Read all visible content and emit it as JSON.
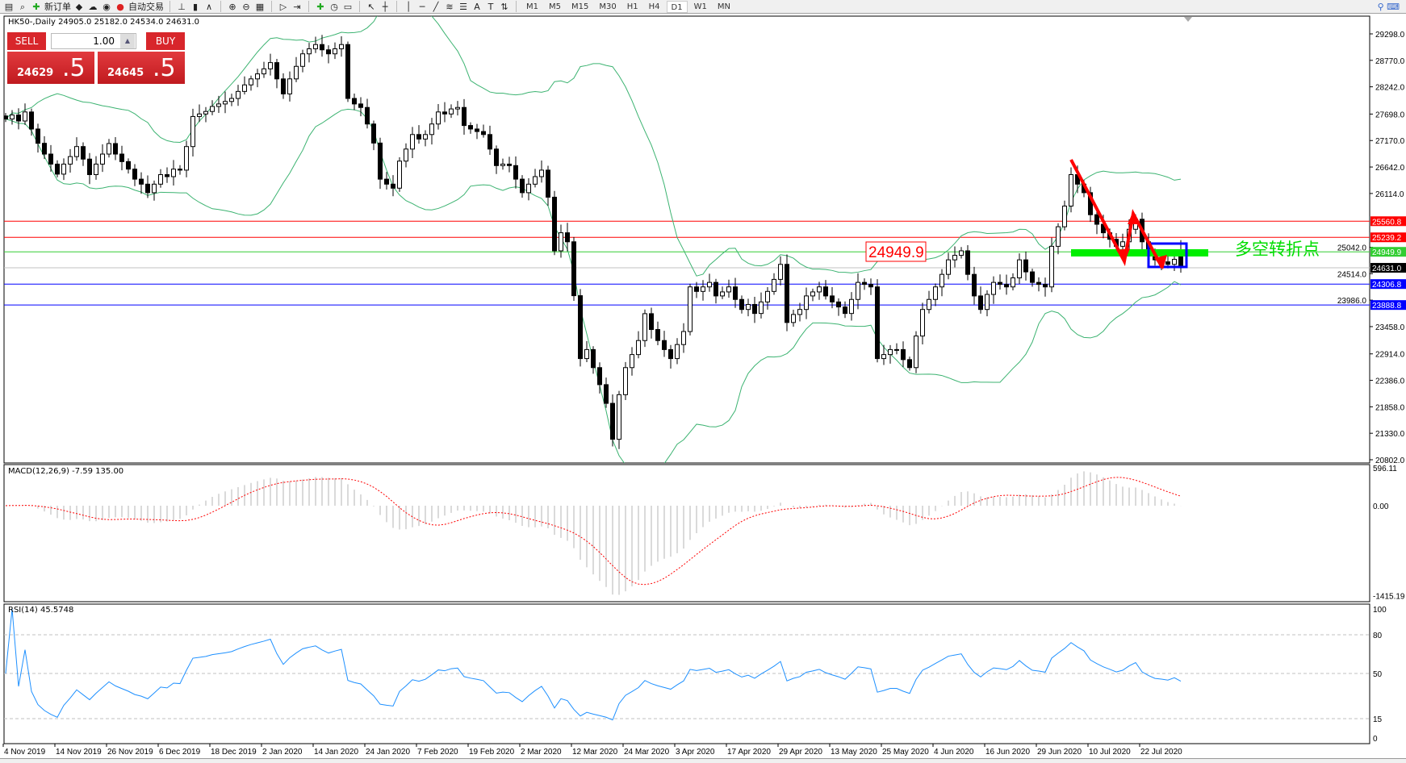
{
  "toolbar": {
    "icons": [
      "chart-list-icon",
      "zoom-window-icon",
      "new-order-icon",
      "gold-icon",
      "cloud-icon",
      "signal-icon",
      "auto-trading-icon",
      "bar-chart-icon",
      "candle-chart-icon",
      "line-chart-icon",
      "zoom-in-icon",
      "zoom-out-icon",
      "tile-icon",
      "autoscroll-icon",
      "chart-shift-icon",
      "indicators-icon",
      "clock-icon",
      "template-icon",
      "cursor-icon",
      "crosshair-icon",
      "vertical-line-icon",
      "horizontal-line-icon",
      "trendline-icon",
      "fibonacci-icon",
      "fibo-levels-icon",
      "text-icon",
      "label-icon",
      "arrows-icon"
    ],
    "new_order": "新订单",
    "auto_trading": "自动交易",
    "timeframes": [
      "M1",
      "M5",
      "M15",
      "M30",
      "H1",
      "H4",
      "D1",
      "W1",
      "MN"
    ],
    "active_timeframe": "D1"
  },
  "chart": {
    "title": "HK50-,Daily  24905.0 25182.0 24534.0 24631.0",
    "last_bar": {
      "open": 24905.0,
      "high": 25182.0,
      "low": 24534.0,
      "close": 24631.0
    },
    "one_click": {
      "sell": "SELL",
      "buy": "BUY",
      "lot": "1.00",
      "bid_main": "24629",
      "bid_big": ".5",
      "ask_main": "24645",
      "ask_big": ".5"
    },
    "price_ticks": [
      "29298.0",
      "28770.0",
      "28242.0",
      "27698.0",
      "27170.0",
      "26642.0",
      "26114.0",
      "25042.0",
      "24514.0",
      "23986.0",
      "23458.0",
      "22914.0",
      "22386.0",
      "21858.0",
      "21330.0",
      "20802.0"
    ],
    "levels": [
      {
        "price": "25560.8",
        "color": "#ff0000"
      },
      {
        "price": "25239.2",
        "color": "#ff0000"
      },
      {
        "price": "24949.9",
        "color": "#32cd32"
      },
      {
        "price": "24631.0",
        "color": "#000000",
        "line": "#c0c0c0"
      },
      {
        "price": "24306.8",
        "color": "#0000ff"
      },
      {
        "price": "23888.8",
        "color": "#0000ff"
      }
    ],
    "annotation_price": "24949.9",
    "annotation_text": "多空转折点",
    "dates": [
      "4 Nov 2019",
      "14 Nov 2019",
      "26 Nov 2019",
      "6 Dec 2019",
      "18 Dec 2019",
      "2 Jan 2020",
      "14 Jan 2020",
      "24 Jan 2020",
      "7 Feb 2020",
      "19 Feb 2020",
      "2 Mar 2020",
      "12 Mar 2020",
      "24 Mar 2020",
      "3 Apr 2020",
      "17 Apr 2020",
      "29 Apr 2020",
      "13 May 2020",
      "25 May 2020",
      "4 Jun 2020",
      "16 Jun 2020",
      "29 Jun 2020",
      "10 Jul 2020",
      "22 Jul 2020"
    ],
    "closes": [
      27600,
      27680,
      27560,
      27740,
      27400,
      27115,
      26900,
      26700,
      26500,
      26700,
      26850,
      27050,
      26800,
      26490,
      26700,
      26900,
      27110,
      26900,
      26750,
      26600,
      26400,
      26300,
      26130,
      26300,
      26490,
      26450,
      26600,
      26580,
      27050,
      27650,
      27700,
      27750,
      27850,
      27900,
      27950,
      28010,
      28150,
      28280,
      28400,
      28500,
      28600,
      28725,
      28400,
      28100,
      28400,
      28650,
      28900,
      29000,
      29085,
      28980,
      28900,
      29000,
      29085,
      28010,
      27900,
      27830,
      27500,
      27120,
      26400,
      26300,
      26220,
      26760,
      27000,
      27290,
      27200,
      27290,
      27500,
      27740,
      27700,
      27800,
      27830,
      27470,
      27400,
      27350,
      27290,
      27000,
      26670,
      26700,
      26670,
      26400,
      26130,
      26300,
      26450,
      26580,
      26040,
      24970,
      25330,
      25150,
      24075,
      22820,
      23000,
      22640,
      22300,
      21927,
      21210,
      22100,
      22640,
      22900,
      23180,
      23716,
      23400,
      23180,
      23000,
      22820,
      23100,
      23360,
      24250,
      24160,
      24250,
      24340,
      24070,
      24150,
      24250,
      24000,
      23800,
      23900,
      23720,
      23950,
      24160,
      24400,
      24700,
      23540,
      23700,
      23800,
      24070,
      24150,
      24250,
      24070,
      23950,
      23850,
      23720,
      24000,
      24340,
      24300,
      24250,
      22820,
      22900,
      23000,
      23000,
      22800,
      22640,
      23270,
      23800,
      24000,
      24250,
      24500,
      24790,
      24880,
      24970,
      24500,
      24070,
      23800,
      24100,
      24340,
      24300,
      24250,
      24430,
      24790,
      24550,
      24340,
      24300,
      24250,
      25060,
      25450,
      25863,
      26490,
      26300,
      26130,
      25690,
      25500,
      25330,
      25200,
      25060,
      25150,
      25400,
      25600,
      25150,
      24950,
      24790,
      24750,
      24700,
      24800,
      24631
    ],
    "colors": {
      "bands": "#3cb371",
      "macd_hist": "#b4b4b4",
      "macd_signal": "#ff0000",
      "rsi": "#1e90ff",
      "arrow": "#ff0000",
      "zone": "#00ee00",
      "box": "#0000ff"
    }
  },
  "macd": {
    "label": "MACD(12,26,9) -7.59 135.00",
    "ticks": [
      "596.11",
      "0.00",
      "-1415.19"
    ]
  },
  "rsi": {
    "label": "RSI(14) 45.5748",
    "ticks": [
      "100",
      "80",
      "50",
      "15",
      "0"
    ]
  }
}
